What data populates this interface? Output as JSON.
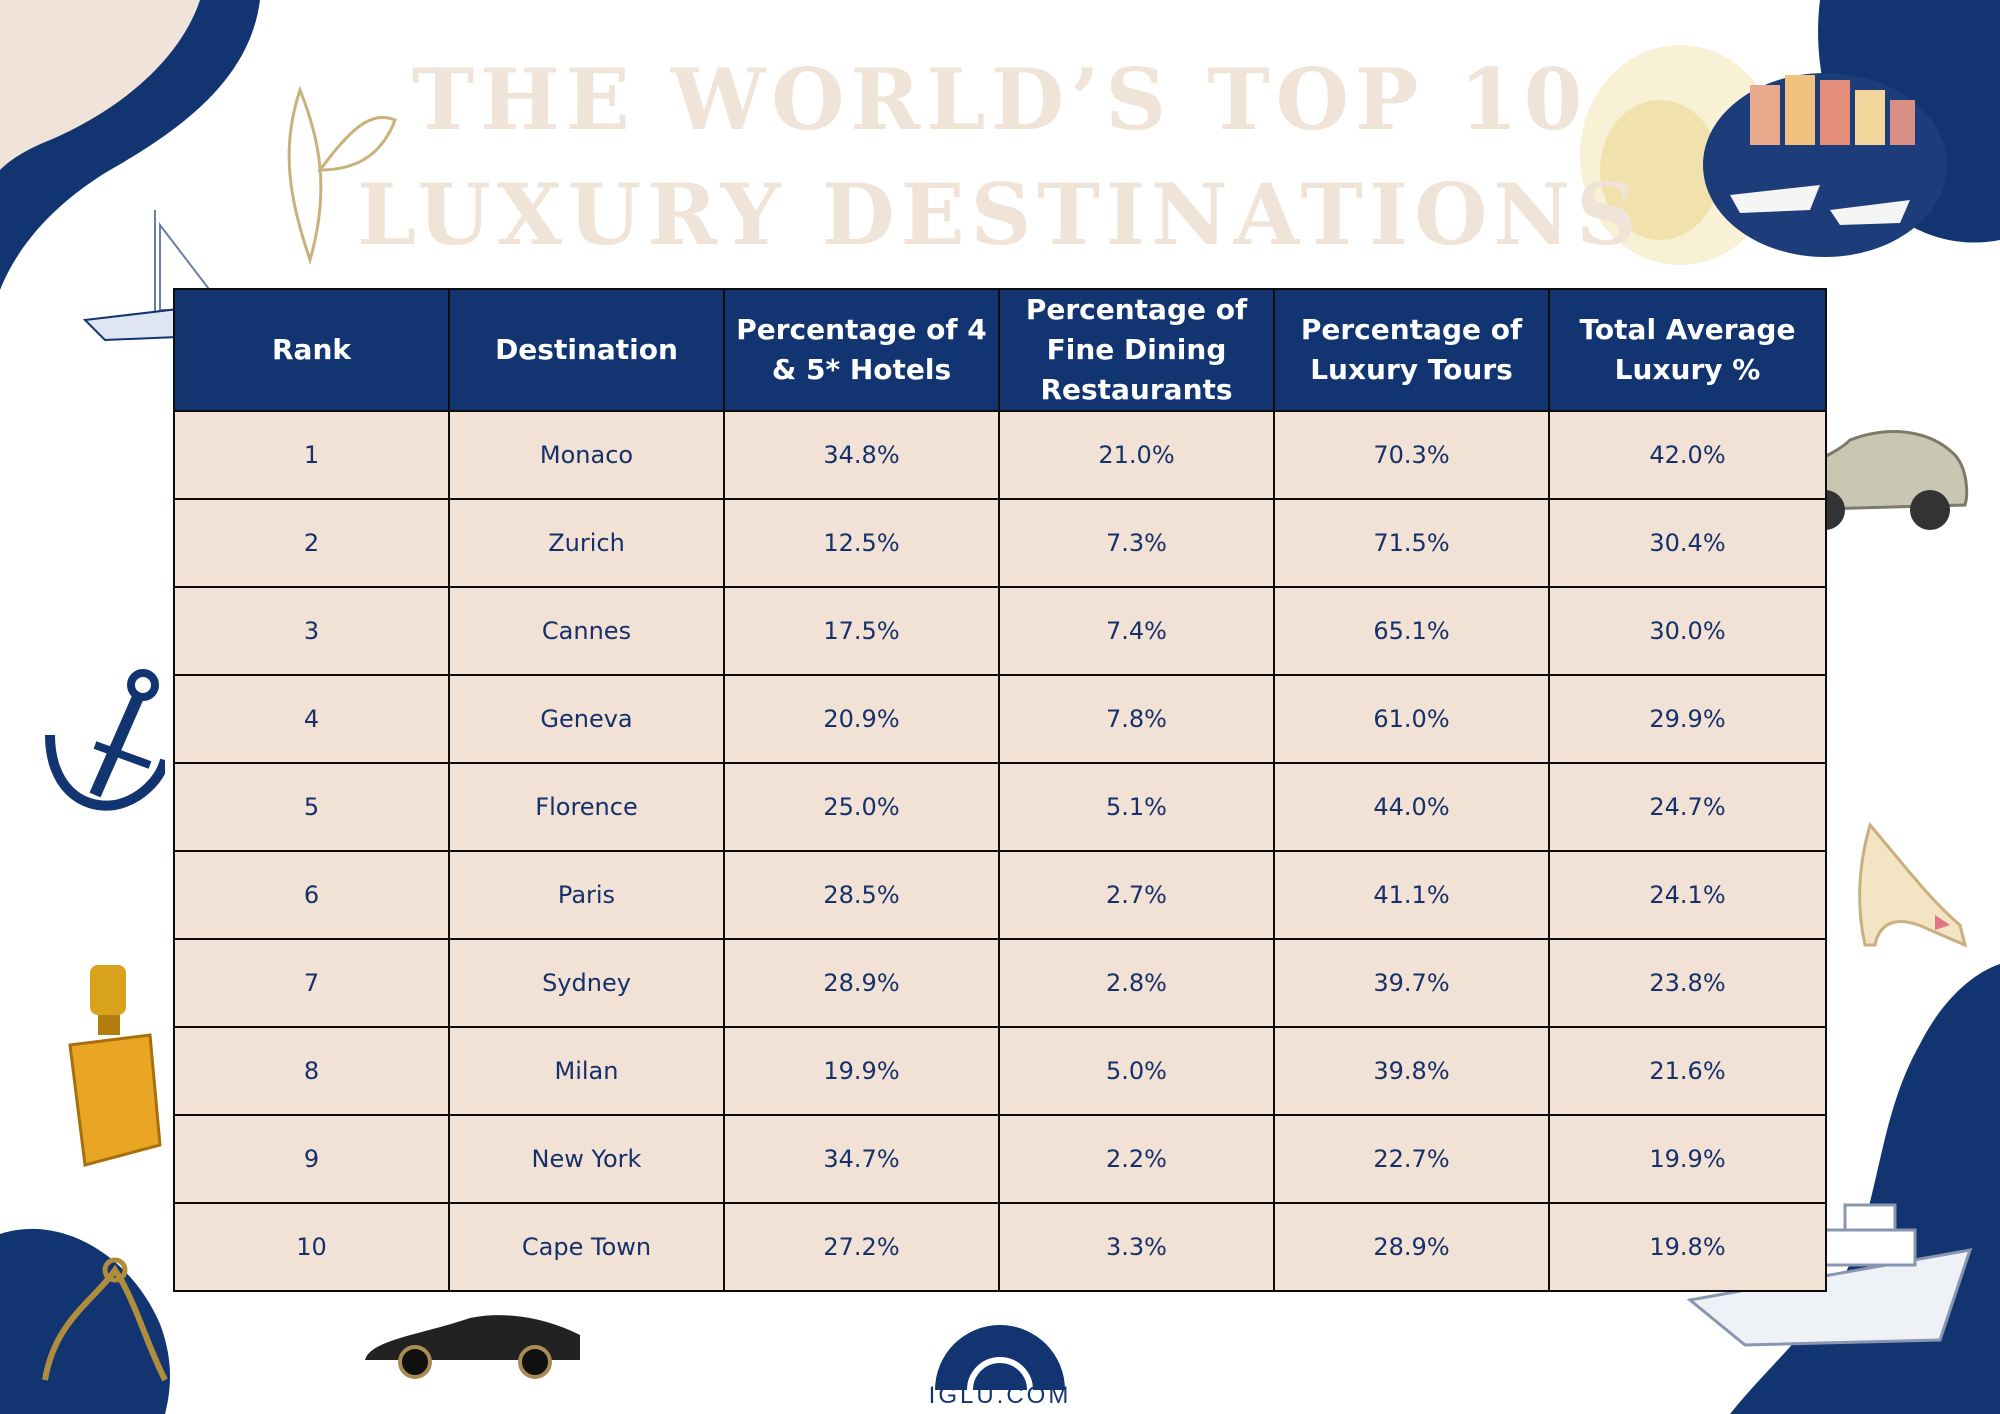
{
  "title": {
    "line1": "The World’s Top 10",
    "line2": "Luxury Destinations"
  },
  "table": {
    "headers": [
      "Rank",
      "Destination",
      "Percentage of 4 & 5* Hotels",
      "Percentage of Fine Dining Restaurants",
      "Percentage of Luxury Tours",
      "Total Average Luxury %"
    ],
    "rows": [
      [
        "1",
        "Monaco",
        "34.8%",
        "21.0%",
        "70.3%",
        "42.0%"
      ],
      [
        "2",
        "Zurich",
        "12.5%",
        "7.3%",
        "71.5%",
        "30.4%"
      ],
      [
        "3",
        "Cannes",
        "17.5%",
        "7.4%",
        "65.1%",
        "30.0%"
      ],
      [
        "4",
        "Geneva",
        "20.9%",
        "7.8%",
        "61.0%",
        "29.9%"
      ],
      [
        "5",
        "Florence",
        "25.0%",
        "5.1%",
        "44.0%",
        "24.7%"
      ],
      [
        "6",
        "Paris",
        "28.5%",
        "2.7%",
        "41.1%",
        "24.1%"
      ],
      [
        "7",
        "Sydney",
        "28.9%",
        "2.8%",
        "39.7%",
        "23.8%"
      ],
      [
        "8",
        "Milan",
        "19.9%",
        "5.0%",
        "39.8%",
        "21.6%"
      ],
      [
        "9",
        "New York",
        "34.7%",
        "2.2%",
        "22.7%",
        "19.9%"
      ],
      [
        "10",
        "Cape Town",
        "27.2%",
        "3.3%",
        "28.9%",
        "19.8%"
      ]
    ]
  },
  "logo": {
    "text": "IGLU.COM"
  },
  "colors": {
    "navy": "#123571",
    "cell_bg": "#f2e2d6",
    "title": "#f0e4d8",
    "border": "#0d0d0d"
  },
  "decorations": [
    "leaf-illustration",
    "yacht-sketch",
    "anchor-icon",
    "perfume-bottle",
    "sports-car",
    "harbor-town-illustration",
    "gold-glitter",
    "vintage-car",
    "high-heel-shoe",
    "luxury-yacht",
    "gold-ornament"
  ]
}
